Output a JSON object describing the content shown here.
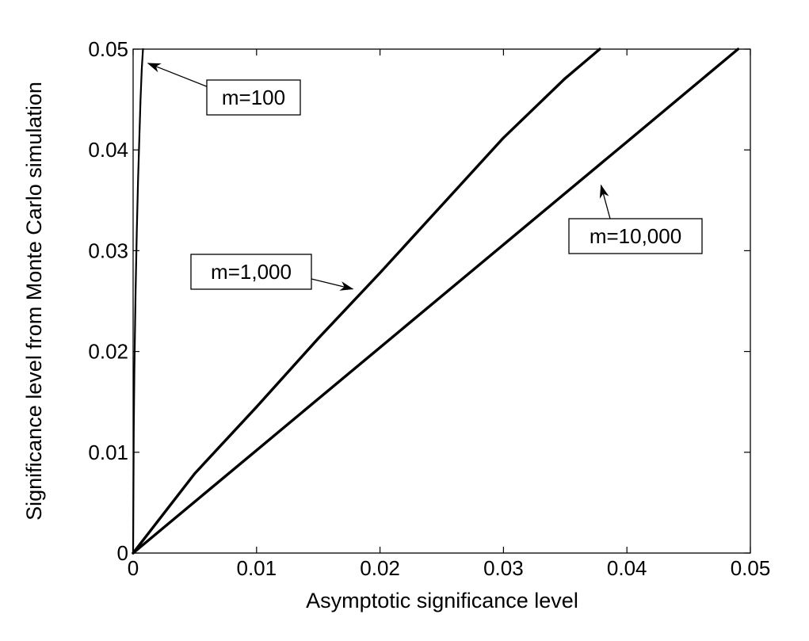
{
  "chart_data": {
    "type": "line",
    "title": "",
    "xlabel": "Asymptotic significance level",
    "ylabel": "Significance level from Monte Carlo simulation",
    "xlim": [
      0,
      0.05
    ],
    "ylim": [
      0,
      0.05
    ],
    "x_ticks": [
      "0",
      "0.01",
      "0.02",
      "0.03",
      "0.04",
      "0.05"
    ],
    "y_ticks": [
      "0",
      "0.01",
      "0.02",
      "0.03",
      "0.04",
      "0.05"
    ],
    "x_tick_values": [
      0,
      0.01,
      0.02,
      0.03,
      0.04,
      0.05
    ],
    "y_tick_values": [
      0,
      0.01,
      0.02,
      0.03,
      0.04,
      0.05
    ],
    "grid": false,
    "legend": "none",
    "line_color": "#000000",
    "series": [
      {
        "x": [
          0,
          5e-05,
          0.0001,
          0.0002,
          0.0003,
          0.0004,
          0.0005,
          0.0006,
          0.0007,
          0.0008
        ],
        "y": [
          0,
          0.012,
          0.018,
          0.026,
          0.032,
          0.037,
          0.041,
          0.045,
          0.048,
          0.05
        ]
      },
      {
        "x": [
          0,
          0.005,
          0.01,
          0.015,
          0.02,
          0.025,
          0.03,
          0.035,
          0.0378
        ],
        "y": [
          0,
          0.0079,
          0.0145,
          0.0213,
          0.0278,
          0.0345,
          0.0412,
          0.0471,
          0.05
        ]
      },
      {
        "x": [
          0,
          0.01,
          0.02,
          0.03,
          0.04,
          0.049
        ],
        "y": [
          0,
          0.0102,
          0.0204,
          0.0306,
          0.0408,
          0.05
        ]
      }
    ],
    "annotations": [
      {
        "text": "m=100",
        "arrow_x": 0.0012,
        "arrow_y": 0.0486
      },
      {
        "text": "m=1,000",
        "arrow_x": 0.0178,
        "arrow_y": 0.0262
      },
      {
        "text": "m=10,000",
        "arrow_x": 0.0379,
        "arrow_y": 0.0365
      }
    ]
  }
}
